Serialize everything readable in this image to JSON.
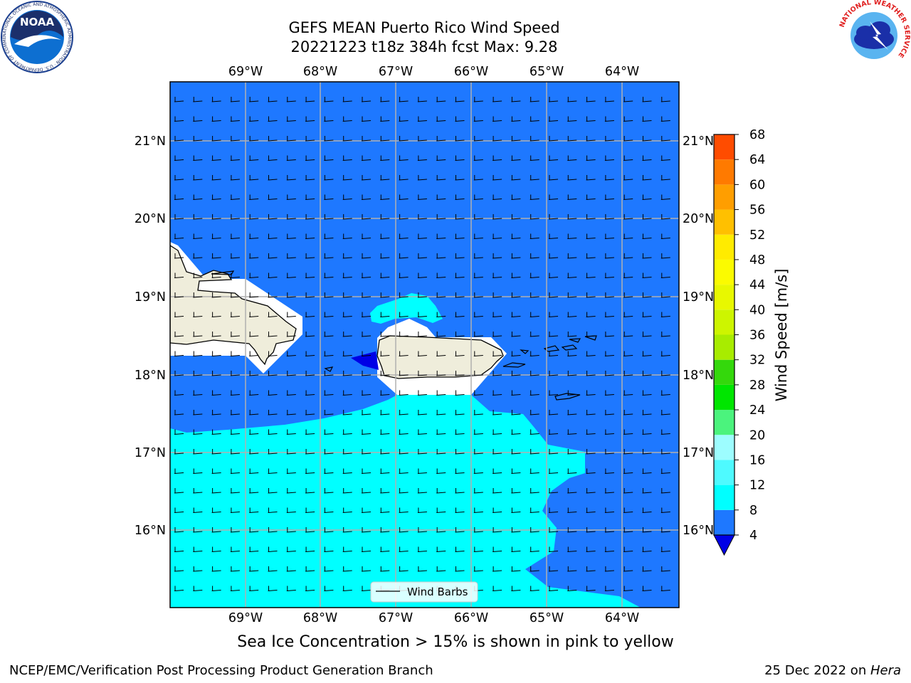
{
  "header": {
    "title_line1": "GEFS MEAN Puerto Rico Wind Speed",
    "title_line2": "20221223 t18z 384h fcst   Max: 9.28"
  },
  "logos": {
    "noaa_text": "NOAA",
    "noaa_ring_text": "NATIONAL OCEANIC AND ATMOSPHERIC ADMINISTRATION · U.S. DEPARTMENT OF COMMERCE",
    "nws_ring_text": "NATIONAL WEATHER SERVICE"
  },
  "map": {
    "lon_labels": [
      "69°W",
      "68°W",
      "67°W",
      "66°W",
      "65°W",
      "64°W"
    ],
    "lat_labels": [
      "21°N",
      "20°N",
      "19°N",
      "18°N",
      "17°N",
      "16°N"
    ],
    "legend_label": "Wind Barbs",
    "colors": {
      "ocean_4_8": "#1e78ff",
      "ocean_8_12": "#00ffff",
      "ocean_12_16": "#4efaff",
      "below_4": "#0000e6",
      "land": "#efeddb",
      "gridline": "#b0b0b0"
    }
  },
  "colorbar": {
    "label": "Wind Speed [m/s]",
    "ticks": [
      4,
      8,
      12,
      16,
      20,
      24,
      28,
      32,
      36,
      40,
      44,
      48,
      52,
      56,
      60,
      64,
      68
    ],
    "colors": [
      "#00ffff",
      "#4efaff",
      "#9dfdff",
      "#4bf37d",
      "#00e600",
      "#34d80c",
      "#a8ec00",
      "#cdf500",
      "#e8f800",
      "#fbfb00",
      "#ffeb00",
      "#ffc000",
      "#ff9e00",
      "#ff7a00",
      "#ff4c00",
      "#ff1a00"
    ],
    "first_band_color": "#1e78ff",
    "under_color": "#0000e6"
  },
  "note": "Sea Ice Concentration > 15% is shown in pink to yellow",
  "footer": {
    "left": "NCEP/EMC/Verification Post Processing Product Generation Branch",
    "right_date": "25 Dec 2022 on ",
    "right_machine": "Hera"
  }
}
